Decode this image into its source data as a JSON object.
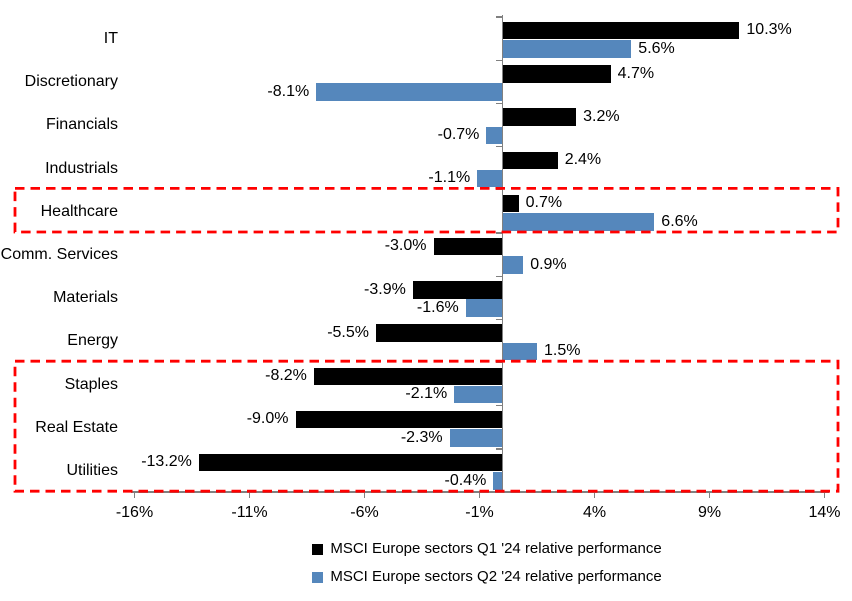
{
  "chart_data": {
    "type": "bar",
    "orientation": "horizontal",
    "title": "",
    "categories": [
      "IT",
      "Discretionary",
      "Financials",
      "Industrials",
      "Healthcare",
      "Comm. Services",
      "Materials",
      "Energy",
      "Staples",
      "Real Estate",
      "Utilities"
    ],
    "series": [
      {
        "name": "MSCI Europe sectors Q1 '24 relative performance",
        "color": "#000000",
        "values": [
          10.3,
          4.7,
          3.2,
          2.4,
          0.7,
          -3.0,
          -3.9,
          -5.5,
          -8.2,
          -9.0,
          -13.2
        ],
        "labels": [
          "10.3%",
          "4.7%",
          "3.2%",
          "2.4%",
          "0.7%",
          "-3.0%",
          "-3.9%",
          "-5.5%",
          "-8.2%",
          "-9.0%",
          "-13.2%"
        ]
      },
      {
        "name": "MSCI Europe sectors Q2 '24 relative performance",
        "color": "#5587BC",
        "values": [
          5.6,
          -8.1,
          -0.7,
          -1.1,
          6.6,
          0.9,
          -1.6,
          1.5,
          -2.1,
          -2.3,
          -0.4
        ],
        "labels": [
          "5.6%",
          "-8.1%",
          "-0.7%",
          "-1.1%",
          "6.6%",
          "0.9%",
          "-1.6%",
          "1.5%",
          "-2.1%",
          "-2.3%",
          "-0.4%"
        ]
      }
    ],
    "x_axis": {
      "tick_labels": [
        "-16%",
        "-11%",
        "-6%",
        "-1%",
        "4%",
        "9%",
        "14%"
      ],
      "tick_values": [
        -16,
        -11,
        -6,
        -1,
        4,
        9,
        14
      ],
      "min": -16,
      "max": 14,
      "grid": false
    },
    "legend": {
      "position": "bottom"
    },
    "annotations": [
      {
        "type": "highlight-box",
        "style": "dashed",
        "color": "#FF0000",
        "from_category": "Healthcare",
        "to_category": "Healthcare"
      },
      {
        "type": "highlight-box",
        "style": "dashed",
        "color": "#FF0000",
        "from_category": "Staples",
        "to_category": "Utilities"
      }
    ],
    "axis_color": "#808080",
    "text_color": "#000000",
    "background": "#FFFFFF"
  }
}
